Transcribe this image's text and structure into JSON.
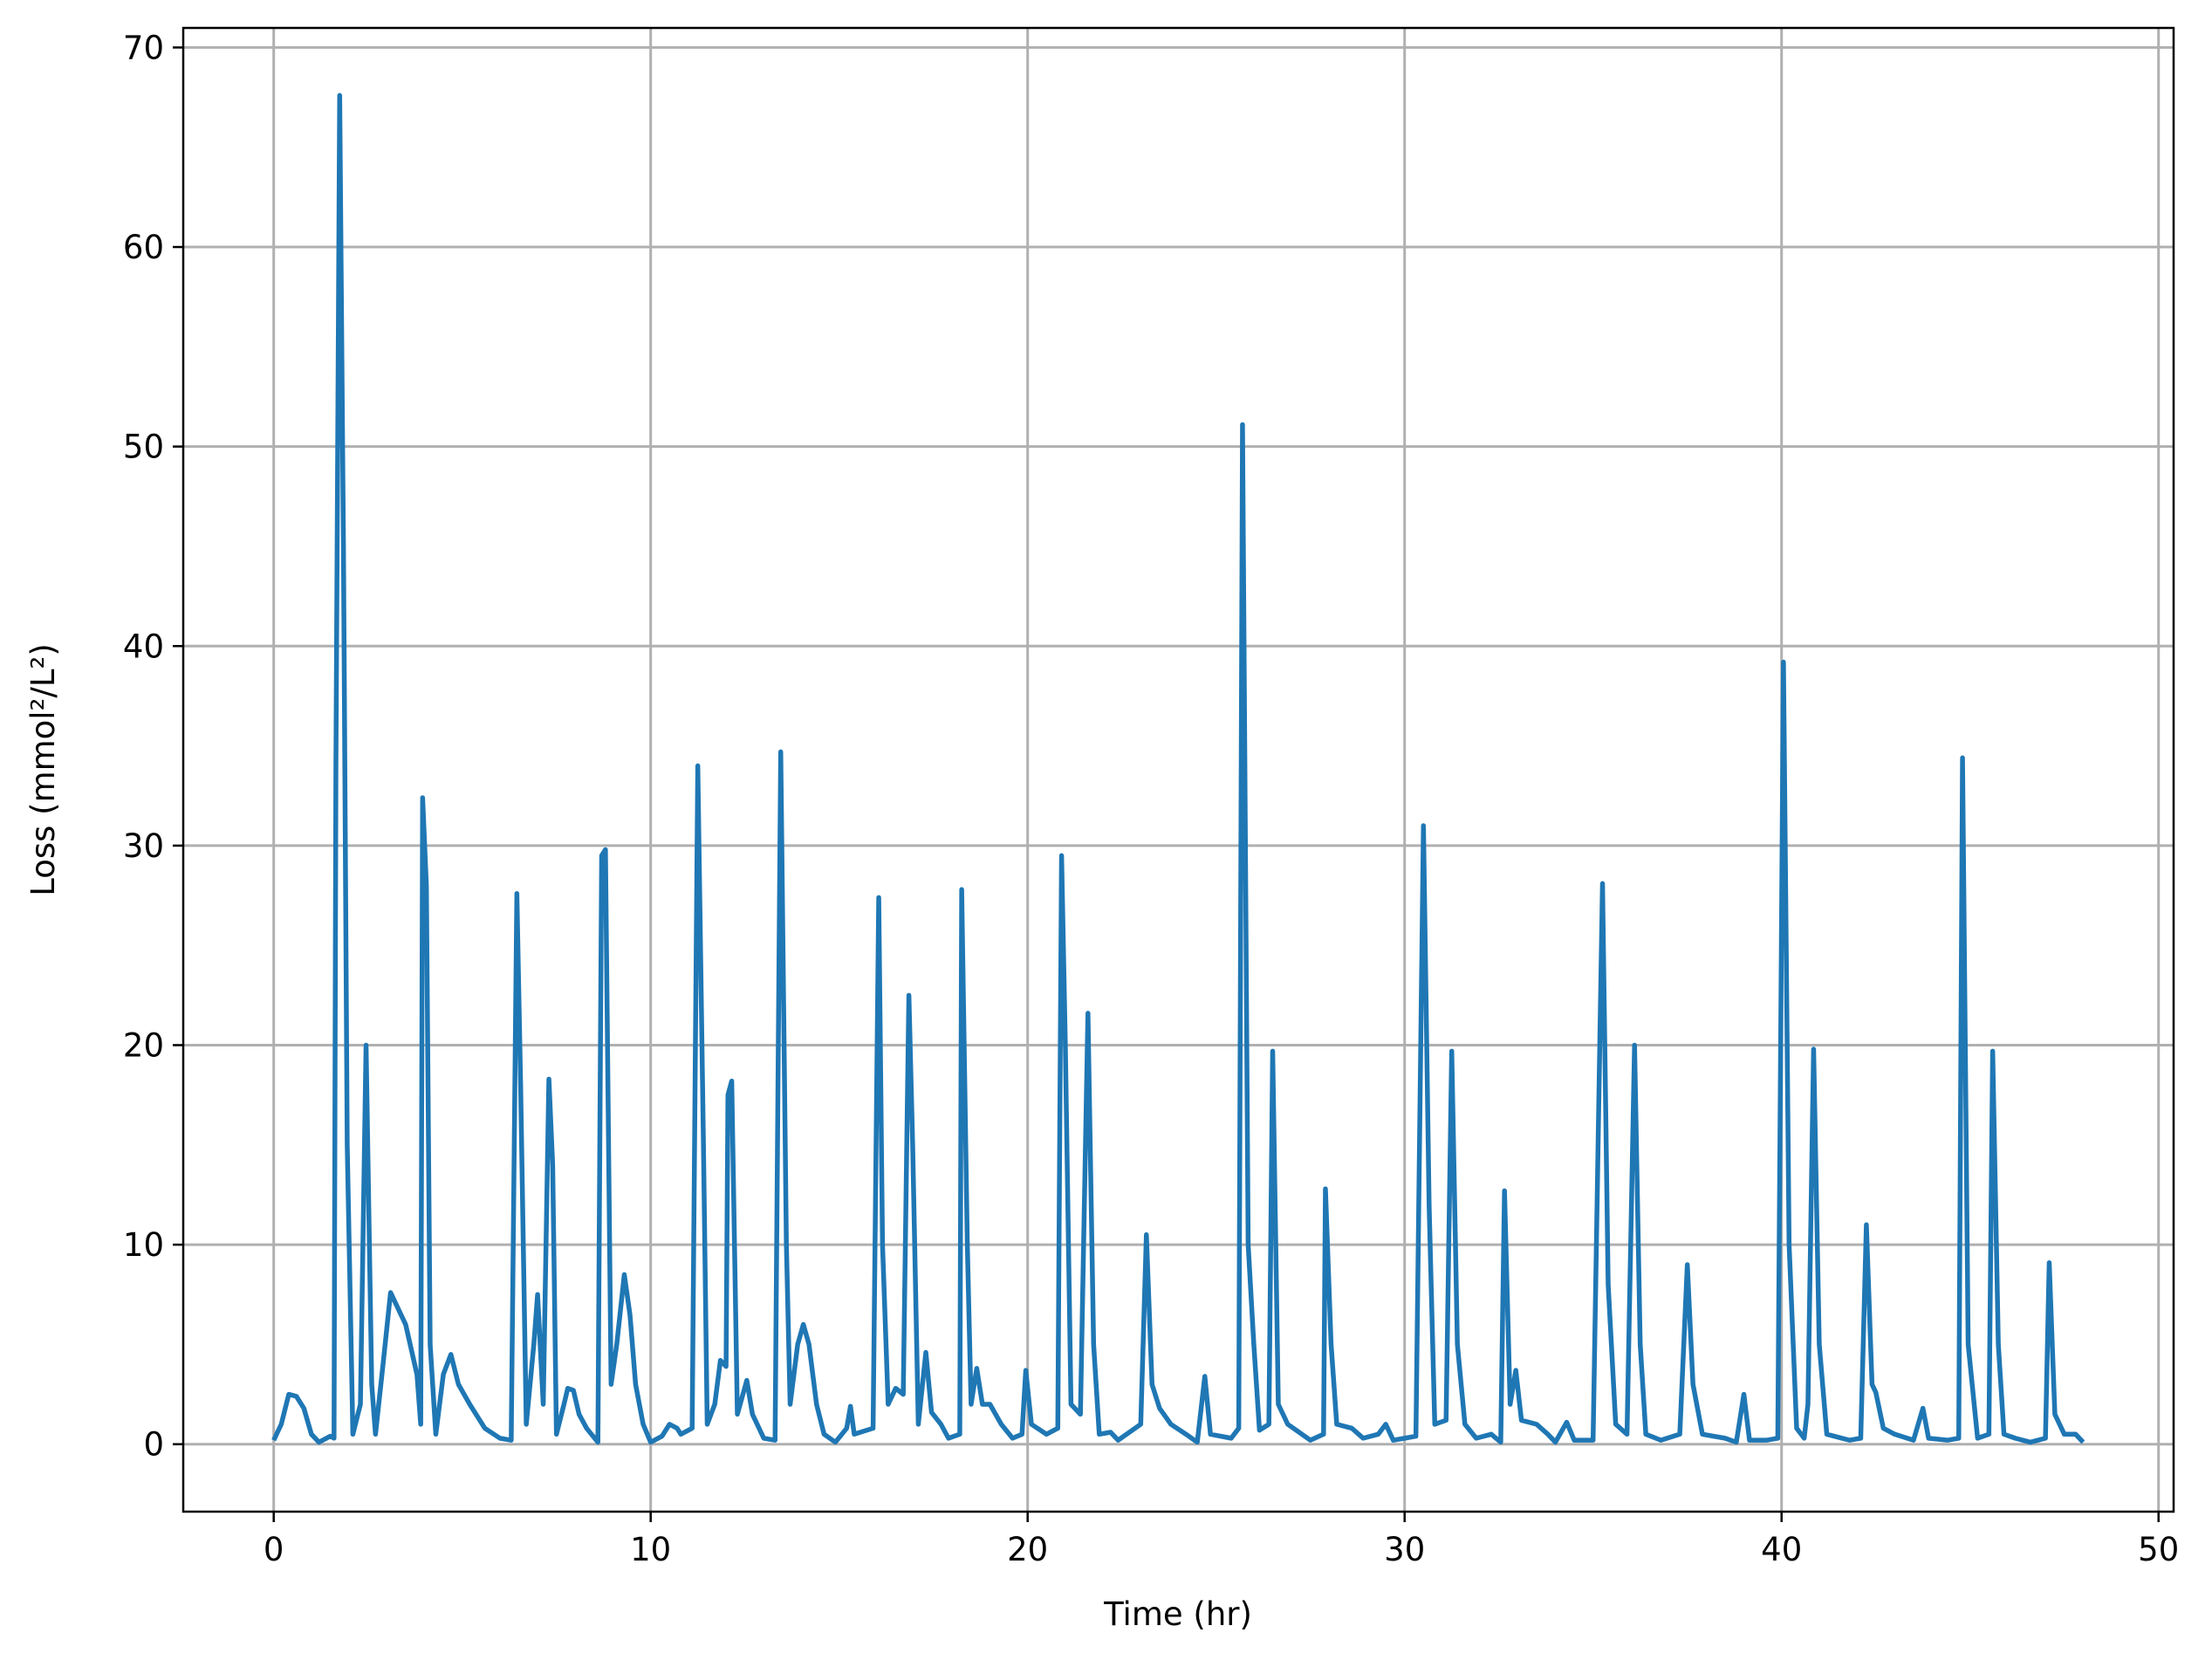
{
  "chart_data": {
    "type": "line",
    "xlabel": "Time (hr)",
    "ylabel": "Loss (mmol²/L²)",
    "x": [
      0,
      0.2,
      0.4,
      0.6,
      0.8,
      1.0,
      1.2,
      1.5,
      1.6,
      1.65,
      1.75,
      1.85,
      1.95,
      2.1,
      2.3,
      2.45,
      2.6,
      2.7,
      2.9,
      3.1,
      3.3,
      3.5,
      3.8,
      3.9,
      3.95,
      4.05,
      4.15,
      4.3,
      4.5,
      4.7,
      4.9,
      5.2,
      5.6,
      6.0,
      6.3,
      6.45,
      6.55,
      6.7,
      6.9,
      7.0,
      7.15,
      7.3,
      7.4,
      7.5,
      7.7,
      7.8,
      7.95,
      8.1,
      8.3,
      8.6,
      8.7,
      8.8,
      8.95,
      9.1,
      9.3,
      9.45,
      9.6,
      9.8,
      10.0,
      10.3,
      10.5,
      10.7,
      10.8,
      11.1,
      11.25,
      11.4,
      11.5,
      11.7,
      11.85,
      12.0,
      12.05,
      12.15,
      12.3,
      12.55,
      12.7,
      13.0,
      13.3,
      13.45,
      13.6,
      13.7,
      13.9,
      14.05,
      14.2,
      14.4,
      14.6,
      14.9,
      15.2,
      15.3,
      15.4,
      15.9,
      16.05,
      16.15,
      16.3,
      16.5,
      16.7,
      16.85,
      16.95,
      17.1,
      17.3,
      17.45,
      17.7,
      17.9,
      18.2,
      18.25,
      18.4,
      18.5,
      18.65,
      18.8,
      19.0,
      19.3,
      19.6,
      19.85,
      19.95,
      20.1,
      20.5,
      20.8,
      20.9,
      21.0,
      21.15,
      21.4,
      21.6,
      21.75,
      21.9,
      22.2,
      22.4,
      23.0,
      23.15,
      23.3,
      23.5,
      23.8,
      24.2,
      24.5,
      24.7,
      24.85,
      25.4,
      25.6,
      25.7,
      25.85,
      26.0,
      26.15,
      26.4,
      26.5,
      26.65,
      26.9,
      27.2,
      27.5,
      27.85,
      27.9,
      28.05,
      28.2,
      28.6,
      28.9,
      29.3,
      29.5,
      29.7,
      30.0,
      30.3,
      30.5,
      30.65,
      30.8,
      31.1,
      31.25,
      31.4,
      31.6,
      31.9,
      32.3,
      32.55,
      32.65,
      32.8,
      32.95,
      33.1,
      33.5,
      33.8,
      34.0,
      34.3,
      34.5,
      35.0,
      35.25,
      35.4,
      35.6,
      35.9,
      36.1,
      36.25,
      36.4,
      36.8,
      37.3,
      37.5,
      37.65,
      37.9,
      38.5,
      38.8,
      39.0,
      39.15,
      39.6,
      39.9,
      40.05,
      40.2,
      40.4,
      40.6,
      40.7,
      40.85,
      41.0,
      41.2,
      41.8,
      42.1,
      42.25,
      42.4,
      42.5,
      42.7,
      43.0,
      43.5,
      43.75,
      43.9,
      44.4,
      44.7,
      44.8,
      44.95,
      45.2,
      45.5,
      45.6,
      45.75,
      45.9,
      46.2,
      46.6,
      47.0,
      47.1,
      47.25,
      47.5,
      47.8,
      48.0
    ],
    "series": [
      {
        "color": "#1f77b4",
        "values": [
          0.2,
          1,
          2.5,
          2.4,
          1.8,
          0.5,
          0.1,
          0.4,
          0.3,
          34,
          67.6,
          45,
          15,
          0.5,
          2,
          20,
          3,
          0.5,
          4,
          7.6,
          6.8,
          6,
          3.5,
          1,
          32.4,
          28,
          5,
          0.5,
          3.5,
          4.5,
          3,
          2,
          0.8,
          0.3,
          0.2,
          27.6,
          18,
          1,
          5,
          7.5,
          2,
          18.3,
          14,
          0.5,
          2,
          2.8,
          2.7,
          1.5,
          0.8,
          0.1,
          29.5,
          29.8,
          3,
          5,
          8.5,
          6.5,
          3,
          1,
          0.1,
          0.4,
          1,
          0.8,
          0.5,
          0.8,
          34,
          15,
          1,
          2,
          4.2,
          3.9,
          17.5,
          18.2,
          1.5,
          3.2,
          1.5,
          0.3,
          0.2,
          34.7,
          10,
          2,
          5,
          6,
          5,
          2,
          0.5,
          0.1,
          0.8,
          1.9,
          0.5,
          0.8,
          27.4,
          10,
          2,
          2.8,
          2.5,
          22.5,
          15,
          1,
          4.6,
          1.6,
          1,
          0.3,
          0.5,
          27.8,
          10,
          2,
          3.8,
          2,
          2,
          1,
          0.3,
          0.5,
          3.7,
          1,
          0.5,
          0.8,
          29.5,
          20,
          2,
          1.5,
          21.6,
          5,
          0.5,
          0.6,
          0.2,
          1,
          10.5,
          3,
          1.8,
          1,
          0.5,
          0.1,
          3.4,
          0.5,
          0.3,
          0.8,
          51.1,
          10,
          5,
          0.7,
          1,
          19.7,
          2,
          1,
          0.6,
          0.2,
          0.5,
          12.8,
          5,
          1,
          0.8,
          0.3,
          0.5,
          1,
          0.2,
          0.3,
          0.4,
          31,
          12,
          1,
          1.2,
          19.7,
          5,
          1,
          0.3,
          0.5,
          0.1,
          12.7,
          2,
          3.7,
          1.2,
          1,
          0.5,
          0.1,
          1.1,
          0.2,
          0.2,
          28.1,
          8,
          1,
          0.5,
          20,
          5,
          0.5,
          0.2,
          0.5,
          9,
          3,
          0.5,
          0.3,
          0.1,
          2.5,
          0.2,
          0.2,
          0.3,
          39.2,
          10,
          0.8,
          0.3,
          2,
          19.8,
          5,
          0.5,
          0.2,
          0.3,
          11,
          3,
          2.6,
          0.8,
          0.5,
          0.2,
          1.8,
          0.3,
          0.2,
          0.3,
          34.4,
          5,
          0.3,
          0.5,
          19.7,
          5,
          0.5,
          0.3,
          0.1,
          0.3,
          9.1,
          1.5,
          0.5,
          0.5,
          0.1
        ]
      }
    ],
    "xlim": [
      -2.4,
      50.4
    ],
    "ylim": [
      -3.38,
      70.98
    ],
    "xticks": [
      0,
      10,
      20,
      30,
      40,
      50
    ],
    "yticks": [
      0,
      10,
      20,
      30,
      40,
      50,
      60,
      70
    ],
    "grid": true
  }
}
